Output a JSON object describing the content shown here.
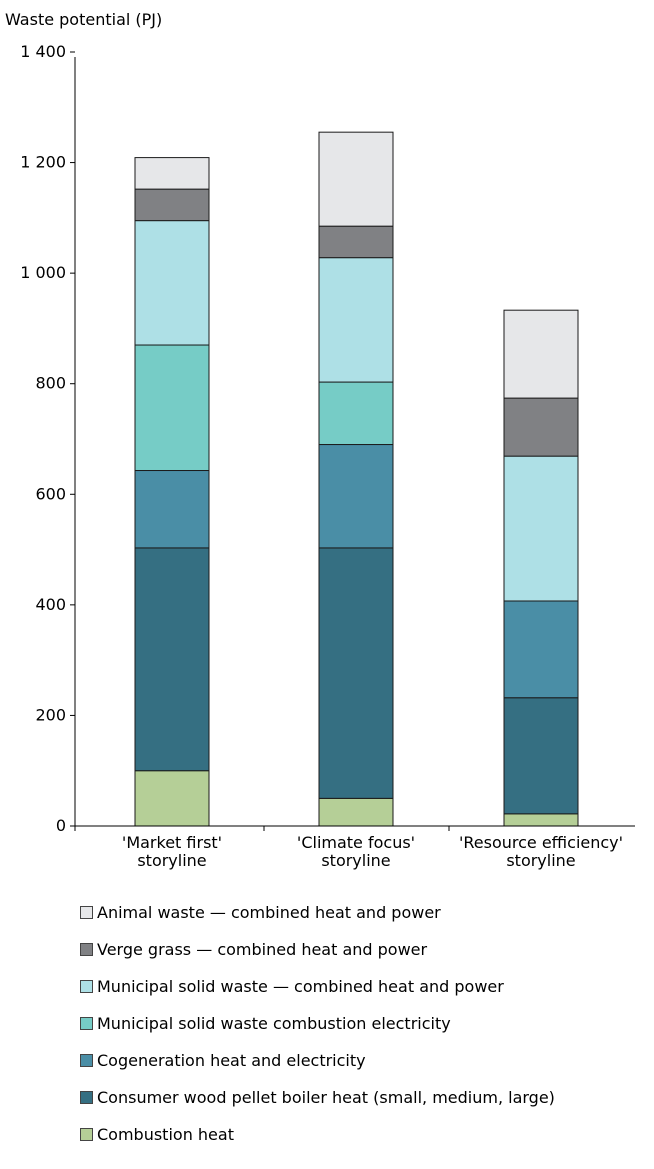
{
  "chart_data": {
    "type": "bar",
    "stacked": true,
    "ylabel": "Waste potential (PJ)",
    "ylim": [
      0,
      1400
    ],
    "yticks": [
      0,
      200,
      400,
      600,
      800,
      1000,
      1200,
      1400
    ],
    "ytick_labels": [
      "0",
      "200",
      "400",
      "600",
      "800",
      "1 000",
      "1 200",
      "1 400"
    ],
    "categories": [
      [
        "'Market first'",
        "storyline"
      ],
      [
        "'Climate focus'",
        "storyline"
      ],
      [
        "'Resource efficiency'",
        "storyline"
      ]
    ],
    "series": [
      {
        "name": "Combustion heat",
        "color": "#b5cf97",
        "values": [
          100,
          50,
          22
        ]
      },
      {
        "name": "Consumer wood pellet boiler heat (small, medium, large)",
        "color": "#356f82",
        "values": [
          403,
          453,
          210
        ]
      },
      {
        "name": "Cogeneration heat and electricity",
        "color": "#4a8ea6",
        "values": [
          140,
          187,
          175
        ]
      },
      {
        "name": "Municipal solid waste combustion electricity",
        "color": "#76ccc6",
        "values": [
          227,
          113,
          0
        ]
      },
      {
        "name": "Municipal solid waste — combined heat and power",
        "color": "#aee0e6",
        "values": [
          225,
          225,
          262
        ]
      },
      {
        "name": "Verge grass — combined heat and power",
        "color": "#808184",
        "values": [
          57,
          57,
          105
        ]
      },
      {
        "name": "Animal waste — combined heat and power",
        "color": "#e6e7e9",
        "values": [
          57,
          170,
          159
        ]
      }
    ],
    "legend_placement": "bottom",
    "grid": false
  }
}
